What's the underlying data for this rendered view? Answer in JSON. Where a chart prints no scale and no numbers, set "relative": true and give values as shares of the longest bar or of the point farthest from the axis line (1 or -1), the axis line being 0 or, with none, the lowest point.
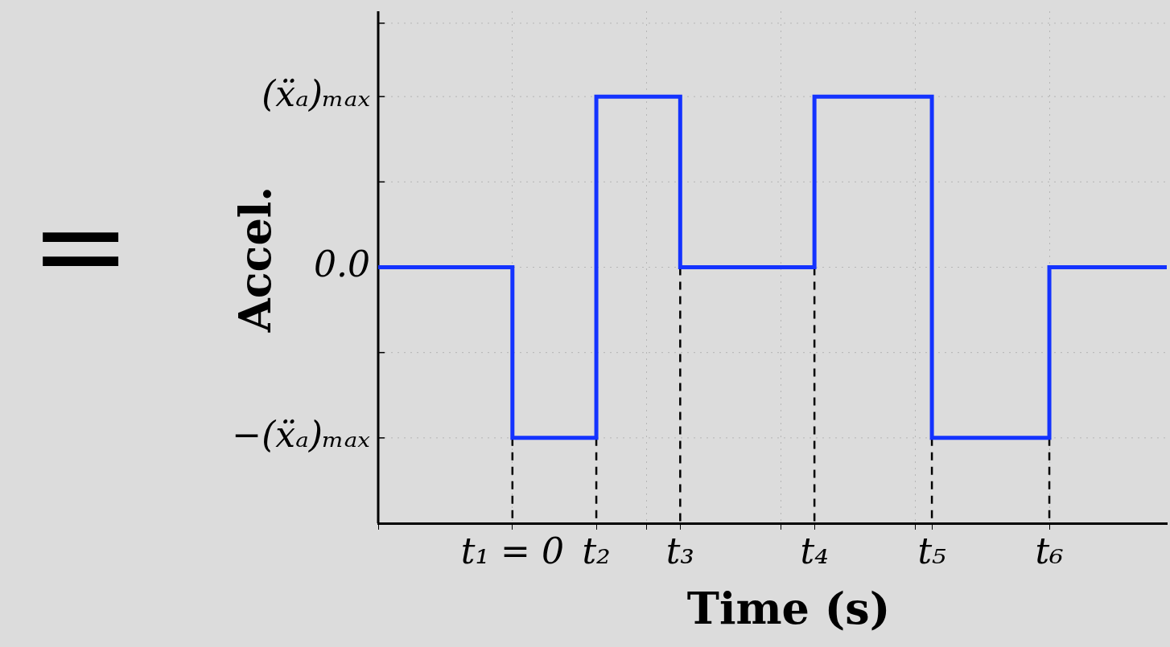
{
  "chart_data": {
    "type": "step",
    "xlabel": "Time (s)",
    "ylabel": "Accel.",
    "relative": true,
    "categories": [
      null,
      null,
      null,
      null,
      null,
      null,
      null,
      null,
      "t₁ = 0",
      null,
      null,
      null,
      null,
      "t₂",
      null,
      null,
      null,
      null,
      "t₃",
      null,
      null,
      null,
      null,
      null,
      null,
      null,
      "t₄",
      null,
      null,
      null,
      null,
      null,
      null,
      "t₅",
      null,
      null,
      null,
      null,
      null,
      null,
      "t₆",
      null,
      null,
      null,
      null,
      null,
      null,
      null
    ],
    "series": [
      {
        "color": "#1433ff",
        "values": [
          0.6,
          0.6,
          0.6,
          0.6,
          0.6,
          0.6,
          0.6,
          0.6,
          0.2,
          0.2,
          0.2,
          0.2,
          0.2,
          1,
          1,
          1,
          1,
          1,
          0.6,
          0.6,
          0.6,
          0.6,
          0.6,
          0.6,
          0.6,
          0.6,
          1,
          1,
          1,
          1,
          1,
          1,
          1,
          0.2,
          0.2,
          0.2,
          0.2,
          0.2,
          0.2,
          0.2,
          0.6,
          0.6,
          0.6,
          0.6,
          0.6,
          0.6,
          0.6,
          0.6
        ]
      }
    ],
    "ref_lines": [
      {
        "axis": "x",
        "value": "t₁ = 0",
        "color": "#000000",
        "line_style": "dashed"
      },
      {
        "axis": "x",
        "value": "t₂",
        "color": "#000000",
        "line_style": "dashed"
      },
      {
        "axis": "x",
        "value": "t₃",
        "color": "#000000",
        "line_style": "dashed"
      },
      {
        "axis": "x",
        "value": "t₄",
        "color": "#000000",
        "line_style": "dashed"
      },
      {
        "axis": "x",
        "value": "t₅",
        "color": "#000000",
        "line_style": "dashed"
      },
      {
        "axis": "x",
        "value": "t₆",
        "color": "#000000",
        "line_style": "dashed"
      }
    ],
    "annotations": [
      "=",
      "(ẍₐ)ₘₐₓ",
      "0.0",
      "−(ẍₐ)ₘₐₓ"
    ],
    "grid": true,
    "legend": false,
    "marker": "none",
    "line_style": "solid"
  }
}
